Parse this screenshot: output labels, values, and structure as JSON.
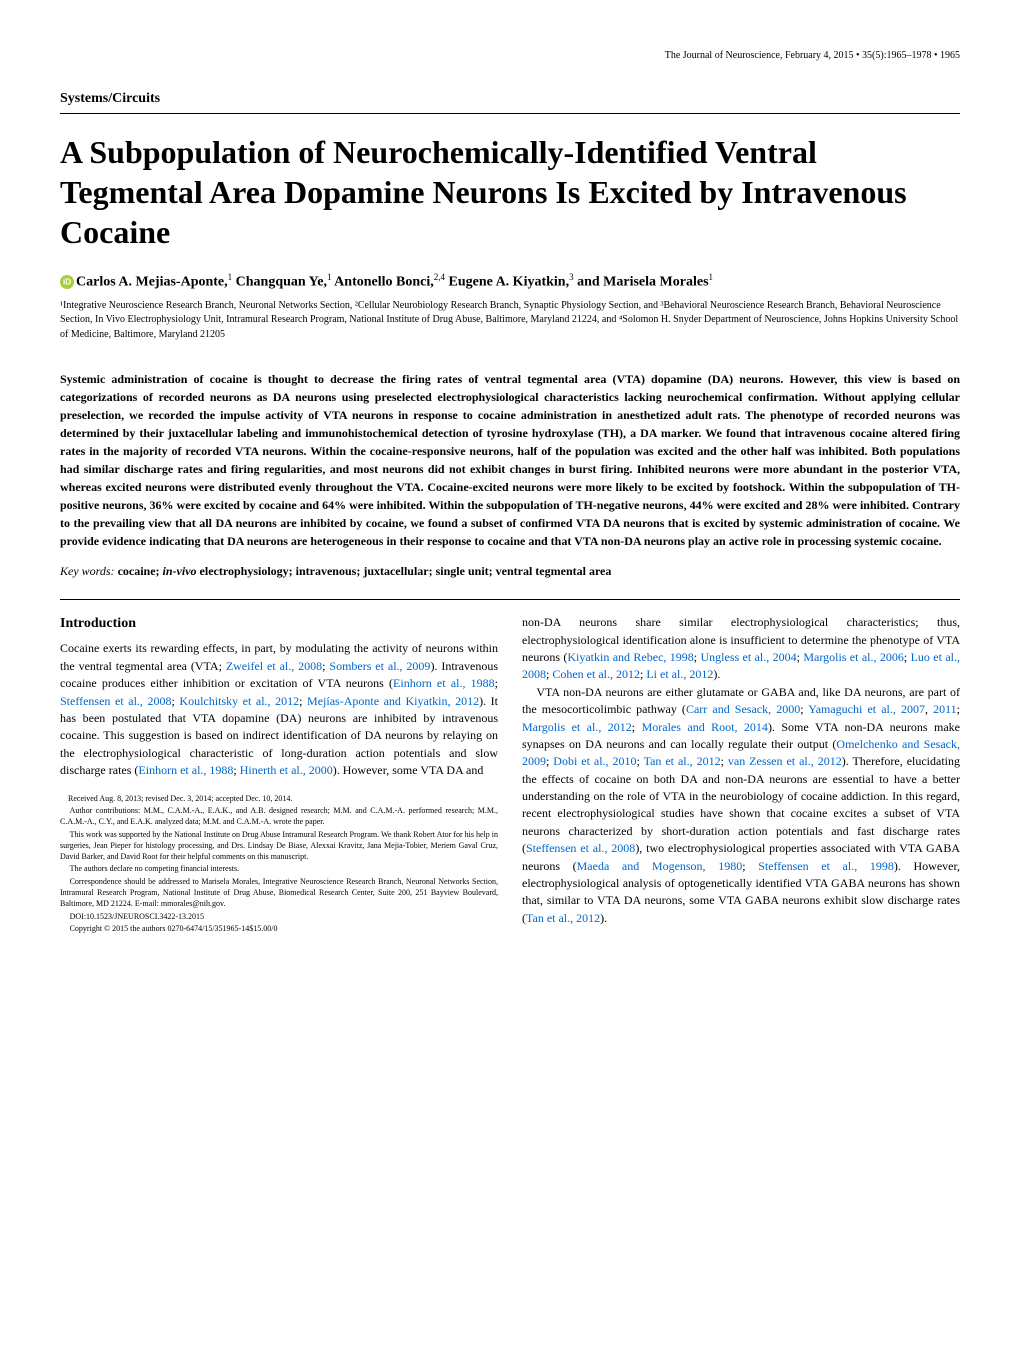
{
  "header": {
    "journal_line": "The Journal of Neuroscience, February 4, 2015 • 35(5):1965–1978 • 1965"
  },
  "section_label": "Systems/Circuits",
  "title": "A Subpopulation of Neurochemically-Identified Ventral Tegmental Area Dopamine Neurons Is Excited by Intravenous Cocaine",
  "authors": {
    "a1_name": "Carlos A. Mejias-Aponte,",
    "a1_sup": "1",
    "a2_name": " Changquan Ye,",
    "a2_sup": "1",
    "a3_name": " Antonello Bonci,",
    "a3_sup": "2,4",
    "a4_name": " Eugene A. Kiyatkin,",
    "a4_sup": "3",
    "a5_name": " and Marisela Morales",
    "a5_sup": "1"
  },
  "affiliations": "¹Integrative Neuroscience Research Branch, Neuronal Networks Section, ²Cellular Neurobiology Research Branch, Synaptic Physiology Section, and ³Behavioral Neuroscience Research Branch, Behavioral Neuroscience Section, In Vivo Electrophysiology Unit, Intramural Research Program, National Institute of Drug Abuse, Baltimore, Maryland 21224, and ⁴Solomon H. Snyder Department of Neuroscience, Johns Hopkins University School of Medicine, Baltimore, Maryland 21205",
  "abstract": "Systemic administration of cocaine is thought to decrease the firing rates of ventral tegmental area (VTA) dopamine (DA) neurons. However, this view is based on categorizations of recorded neurons as DA neurons using preselected electrophysiological characteristics lacking neurochemical confirmation. Without applying cellular preselection, we recorded the impulse activity of VTA neurons in response to cocaine administration in anesthetized adult rats. The phenotype of recorded neurons was determined by their juxtacellular labeling and immunohistochemical detection of tyrosine hydroxylase (TH), a DA marker. We found that intravenous cocaine altered firing rates in the majority of recorded VTA neurons. Within the cocaine-responsive neurons, half of the population was excited and the other half was inhibited. Both populations had similar discharge rates and firing regularities, and most neurons did not exhibit changes in burst firing. Inhibited neurons were more abundant in the posterior VTA, whereas excited neurons were distributed evenly throughout the VTA. Cocaine-excited neurons were more likely to be excited by footshock. Within the subpopulation of TH-positive neurons, 36% were excited by cocaine and 64% were inhibited. Within the subpopulation of TH-negative neurons, 44% were excited and 28% were inhibited. Contrary to the prevailing view that all DA neurons are inhibited by cocaine, we found a subset of confirmed VTA DA neurons that is excited by systemic administration of cocaine. We provide evidence indicating that DA neurons are heterogeneous in their response to cocaine and that VTA non-DA neurons play an active role in processing systemic cocaine.",
  "keywords": {
    "label": "Key words:",
    "text": " cocaine; in-vivo electrophysiology; intravenous; juxtacellular; single unit; ventral tegmental area"
  },
  "left_col": {
    "heading": "Introduction",
    "p1_a": "Cocaine exerts its rewarding effects, in part, by modulating the activity of neurons within the ventral tegmental area (VTA; ",
    "c1": "Zweifel et al., 2008",
    "p1_b": "; ",
    "c2": "Sombers et al., 2009",
    "p1_c": "). Intravenous cocaine produces either inhibition or excitation of VTA neurons (",
    "c3": "Einhorn et al., 1988",
    "p1_d": "; ",
    "c4": "Steffensen et al., 2008",
    "p1_e": "; ",
    "c5": "Koulchitsky et al., 2012",
    "p1_f": "; ",
    "c6": "Mejías-Aponte and Kiyatkin, 2012",
    "p1_g": "). It has been postulated that VTA dopamine (DA) neurons are inhibited by intravenous cocaine. This suggestion is based on indirect identification of DA neurons by relaying on the electrophysiological characteristic of long-duration action potentials and slow discharge rates (",
    "c7": "Einhorn et al., 1988",
    "p1_h": "; ",
    "c8": "Hinerth et al., 2000",
    "p1_i": "). However, some VTA DA and"
  },
  "footnotes": {
    "f1": "Received Aug. 8, 2013; revised Dec. 3, 2014; accepted Dec. 10, 2014.",
    "f2": "Author contributions: M.M., C.A.M.-A., E.A.K., and A.B. designed research; M.M. and C.A.M.-A. performed research; M.M., C.A.M.-A., C.Y., and E.A.K. analyzed data; M.M. and C.A.M.-A. wrote the paper.",
    "f3": "This work was supported by the National Institute on Drug Abuse Intramural Research Program. We thank Robert Ator for his help in surgeries, Jean Pieper for histology processing, and Drs. Lindsay De Biase, Alexxai Kravitz, Jana Mejia-Tobier, Meriem Gaval Cruz, David Barker, and David Root for their helpful comments on this manuscript.",
    "f4": "The authors declare no competing financial interests.",
    "f5": "Correspondence should be addressed to Marisela Morales, Integrative Neuroscience Research Branch, Neuronal Networks Section, Intramural Research Program, National Institute of Drug Abuse, Biomedical Research Center, Suite 200, 251 Bayview Boulevard, Baltimore, MD 21224. E-mail: mmorales@nih.gov.",
    "f6": "DOI:10.1523/JNEUROSCI.3422-13.2015",
    "f7": "Copyright © 2015 the authors    0270-6474/15/351965-14$15.00/0"
  },
  "right_col": {
    "p1_a": "non-DA neurons share similar electrophysiological characteristics; thus, electrophysiological identification alone is insufficient to determine the phenotype of VTA neurons (",
    "c1": "Kiyatkin and Rebec, 1998",
    "p1_b": "; ",
    "c2": "Ungless et al., 2004",
    "p1_c": "; ",
    "c3": "Margolis et al., 2006",
    "p1_d": "; ",
    "c4": "Luo et al., 2008",
    "p1_e": "; ",
    "c5": "Cohen et al., 2012",
    "p1_f": "; ",
    "c6": "Li et al., 2012",
    "p1_g": ").",
    "p2_a": "VTA non-DA neurons are either glutamate or GABA and, like DA neurons, are part of the mesocorticolimbic pathway (",
    "c7": "Carr and Sesack, 2000",
    "p2_b": "; ",
    "c8": "Yamaguchi et al., 2007",
    "p2_c": ", ",
    "c9": "2011",
    "p2_d": "; ",
    "c10": "Margolis et al., 2012",
    "p2_e": "; ",
    "c11": "Morales and Root, 2014",
    "p2_f": "). Some VTA non-DA neurons make synapses on DA neurons and can locally regulate their output (",
    "c12": "Omelchenko and Sesack, 2009",
    "p2_g": "; ",
    "c13": "Dobi et al., 2010",
    "p2_h": "; ",
    "c14": "Tan et al., 2012",
    "p2_i": "; ",
    "c15": "van Zessen et al., 2012",
    "p2_j": "). Therefore, elucidating the effects of cocaine on both DA and non-DA neurons are essential to have a better understanding on the role of VTA in the neurobiology of cocaine addiction. In this regard, recent electrophysiological studies have shown that cocaine excites a subset of VTA neurons characterized by short-duration action potentials and fast discharge rates (",
    "c16": "Steffensen et al., 2008",
    "p2_k": "), two electrophysiological properties associated with VTA GABA neurons (",
    "c17": "Maeda and Mogenson, 1980",
    "p2_l": "; ",
    "c18": "Steffensen et al., 1998",
    "p2_m": "). However, electrophysiological analysis of optogenetically identified VTA GABA neurons has shown that, similar to VTA DA neurons, some VTA GABA neurons exhibit slow discharge rates (",
    "c19": "Tan et al., 2012",
    "p2_n": ")."
  }
}
